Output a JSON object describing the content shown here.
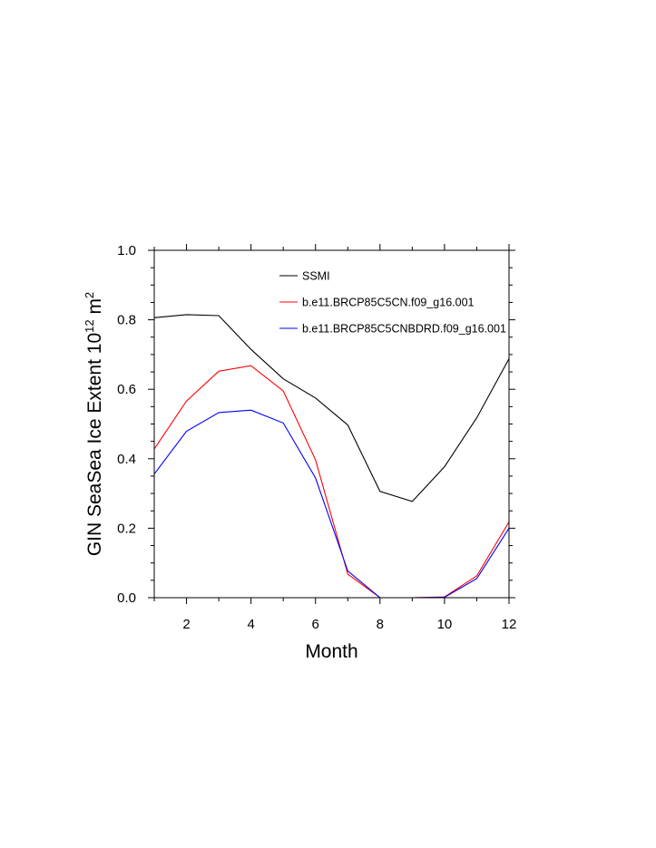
{
  "chart_data": {
    "type": "line",
    "xlabel": "Month",
    "ylabel": {
      "prefix": "GIN SeaSea Ice Extent 10",
      "exponent": "12",
      "unit": " m",
      "unit_exponent": "2"
    },
    "xlim": [
      1,
      12
    ],
    "ylim": [
      0.0,
      1.0
    ],
    "x_ticks": [
      2,
      4,
      6,
      8,
      10,
      12
    ],
    "y_ticks": [
      0.0,
      0.2,
      0.4,
      0.6,
      0.8,
      1.0
    ],
    "y_tick_labels": [
      "0.0",
      "0.2",
      "0.4",
      "0.6",
      "0.8",
      "1.0"
    ],
    "grid": false,
    "legend_position": "top-right",
    "x": [
      1,
      2,
      3,
      4,
      5,
      6,
      7,
      8,
      9,
      10,
      11,
      12
    ],
    "series": [
      {
        "name": "SSMI",
        "color": "#000000",
        "values": [
          0.806,
          0.815,
          0.812,
          0.715,
          0.63,
          0.575,
          0.497,
          0.306,
          0.277,
          0.377,
          0.518,
          0.688
        ]
      },
      {
        "name": "b.e11.BRCP85C5CN.f09_g16.001",
        "color": "#ff0000",
        "values": [
          0.428,
          0.566,
          0.652,
          0.668,
          0.595,
          0.397,
          0.068,
          0.0,
          0.0,
          0.002,
          0.063,
          0.218
        ]
      },
      {
        "name": "b.e11.BRCP85C5CNBDRD.f09_g16.001",
        "color": "#0000ff",
        "values": [
          0.356,
          0.479,
          0.533,
          0.54,
          0.503,
          0.345,
          0.077,
          0.0,
          0.0,
          0.001,
          0.055,
          0.2
        ]
      }
    ]
  }
}
